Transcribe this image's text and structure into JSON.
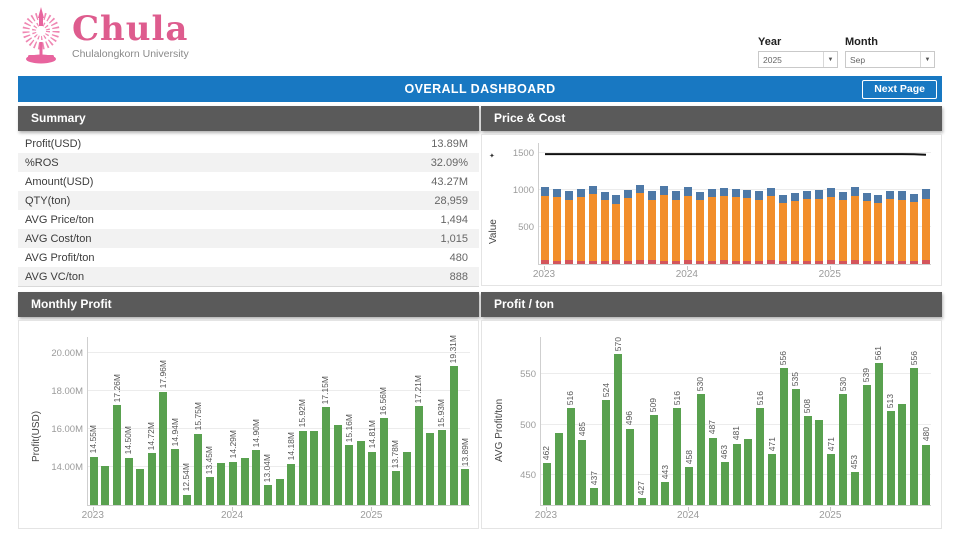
{
  "logo": {
    "brand": "Chula",
    "subtitle": "Chulalongkorn University"
  },
  "filters": {
    "year_label": "Year",
    "year_value": "2025",
    "month_label": "Month",
    "month_value": "Sep"
  },
  "title_bar": {
    "title": "OVERALL DASHBOARD",
    "next_button": "Next Page"
  },
  "panels": {
    "summary": "Summary",
    "price_cost": "Price & Cost",
    "monthly_profit": "Monthly Profit",
    "profit_ton": "Profit / ton"
  },
  "summary": {
    "rows": [
      {
        "label": "Profit(USD)",
        "value": "13.89M"
      },
      {
        "label": "%ROS",
        "value": "32.09%"
      },
      {
        "label": "Amount(USD)",
        "value": "43.27M"
      },
      {
        "label": "QTY(ton)",
        "value": "28,959"
      },
      {
        "label": "AVG Price/ton",
        "value": "1,494"
      },
      {
        "label": "AVG Cost/ton",
        "value": "1,015"
      },
      {
        "label": "AVG Profit/ton",
        "value": "480"
      },
      {
        "label": "AVG VC/ton",
        "value": "888"
      }
    ]
  },
  "colors": {
    "accent_blue": "#1878c2",
    "panel_gray": "#5a5a5a",
    "brand_pink": "#de5c8e",
    "bar_green": "#59a14f",
    "stack_orange": "#f28e2b",
    "stack_blue": "#4e79a7",
    "stack_red": "#d4555b",
    "price_line": "#111111"
  },
  "chart_data": [
    {
      "id": "price_cost",
      "type": "bar",
      "subtype": "stacked-bar-with-line",
      "title": "Price & Cost",
      "ylabel": "Value",
      "x_months": [
        "Jan 2023",
        "Feb 2023",
        "Mar 2023",
        "Apr 2023",
        "May 2023",
        "Jun 2023",
        "Jul 2023",
        "Aug 2023",
        "Sep 2023",
        "Oct 2023",
        "Nov 2023",
        "Dec 2023",
        "Jan 2024",
        "Feb 2024",
        "Mar 2024",
        "Apr 2024",
        "May 2024",
        "Jun 2024",
        "Jul 2024",
        "Aug 2024",
        "Sep 2024",
        "Oct 2024",
        "Nov 2024",
        "Dec 2024",
        "Jan 2025",
        "Feb 2025",
        "Mar 2025",
        "Apr 2025",
        "May 2025",
        "Jun 2025",
        "Jul 2025",
        "Aug 2025",
        "Sep 2025"
      ],
      "year_ticks": [
        {
          "index": 0,
          "label": "2023"
        },
        {
          "index": 12,
          "label": "2024"
        },
        {
          "index": 24,
          "label": "2025"
        }
      ],
      "yticks": [
        {
          "v": 500,
          "t": "500"
        },
        {
          "v": 1000,
          "t": "1000"
        },
        {
          "v": 1500,
          "t": "1500"
        }
      ],
      "ylim": [
        0,
        1650
      ],
      "grid": true,
      "legend": "none",
      "series": [
        {
          "name": "red",
          "color": "#d4555b",
          "values": [
            55,
            40,
            50,
            45,
            45,
            40,
            60,
            45,
            55,
            50,
            45,
            45,
            50,
            40,
            45,
            50,
            45,
            40,
            45,
            50,
            45,
            45,
            40,
            45,
            50,
            40,
            55,
            45,
            40,
            45,
            45,
            45,
            50
          ]
        },
        {
          "name": "orange",
          "color": "#f28e2b",
          "values": [
            865,
            860,
            815,
            860,
            905,
            830,
            750,
            845,
            900,
            810,
            885,
            825,
            875,
            825,
            865,
            875,
            860,
            855,
            815,
            865,
            785,
            805,
            835,
            840,
            860,
            825,
            860,
            810,
            790,
            830,
            825,
            790,
            830
          ]
        },
        {
          "name": "blue",
          "color": "#4e79a7",
          "values": [
            115,
            110,
            120,
            110,
            110,
            105,
            120,
            110,
            115,
            130,
            125,
            115,
            115,
            105,
            100,
            110,
            110,
            110,
            125,
            115,
            110,
            110,
            115,
            110,
            120,
            105,
            125,
            110,
            110,
            115,
            115,
            110,
            130
          ]
        }
      ],
      "line": {
        "name": "price",
        "color": "#111111",
        "values": [
          1500,
          1500,
          1500,
          1500,
          1500,
          1500,
          1500,
          1500,
          1500,
          1500,
          1500,
          1500,
          1500,
          1500,
          1500,
          1500,
          1500,
          1500,
          1500,
          1500,
          1500,
          1500,
          1500,
          1500,
          1500,
          1500,
          1500,
          1500,
          1500,
          1500,
          1500,
          1497,
          1490
        ]
      }
    },
    {
      "id": "monthly_profit",
      "type": "bar",
      "title": "Monthly Profit",
      "ylabel": "Profit(USD)",
      "x_months": [
        "Jan 2023",
        "Feb 2023",
        "Mar 2023",
        "Apr 2023",
        "May 2023",
        "Jun 2023",
        "Jul 2023",
        "Aug 2023",
        "Sep 2023",
        "Oct 2023",
        "Nov 2023",
        "Dec 2023",
        "Jan 2024",
        "Feb 2024",
        "Mar 2024",
        "Apr 2024",
        "May 2024",
        "Jun 2024",
        "Jul 2024",
        "Aug 2024",
        "Sep 2024",
        "Oct 2024",
        "Nov 2024",
        "Dec 2024",
        "Jan 2025",
        "Feb 2025",
        "Mar 2025",
        "Apr 2025",
        "May 2025",
        "Jun 2025",
        "Jul 2025",
        "Aug 2025",
        "Sep 2025"
      ],
      "year_ticks": [
        {
          "index": 0,
          "label": "2023"
        },
        {
          "index": 12,
          "label": "2024"
        },
        {
          "index": 24,
          "label": "2025"
        }
      ],
      "values": [
        14.55,
        14.05,
        17.26,
        14.5,
        13.9,
        14.72,
        17.96,
        14.94,
        12.54,
        15.75,
        13.45,
        14.2,
        14.29,
        14.5,
        14.9,
        13.04,
        13.35,
        14.18,
        15.92,
        15.88,
        17.15,
        16.2,
        15.16,
        15.35,
        14.81,
        16.56,
        13.78,
        14.78,
        17.21,
        15.8,
        15.93,
        19.31,
        13.89
      ],
      "labels": [
        "14.55M",
        "",
        "17.26M",
        "14.50M",
        "",
        "14.72M",
        "17.96M",
        "14.94M",
        "12.54M",
        "15.75M",
        "13.45M",
        "",
        "14.29M",
        "",
        "14.90M",
        "13.04M",
        "",
        "14.18M",
        "15.92M",
        "",
        "17.15M",
        "",
        "15.16M",
        "",
        "14.81M",
        "16.56M",
        "13.78M",
        "",
        "17.21M",
        "",
        "15.93M",
        "19.31M",
        "13.89M"
      ],
      "yticks": [
        {
          "v": 14,
          "t": "14.00M"
        },
        {
          "v": 16,
          "t": "16.00M"
        },
        {
          "v": 18,
          "t": "18.00M"
        },
        {
          "v": 20,
          "t": "20.00M"
        }
      ],
      "ylim": [
        12.0,
        20.9
      ],
      "grid": true,
      "bar_color": "#59a14f"
    },
    {
      "id": "profit_ton",
      "type": "bar",
      "title": "Profit / ton",
      "ylabel": "AVG Profit/ton",
      "x_months": [
        "Jan 2023",
        "Feb 2023",
        "Mar 2023",
        "Apr 2023",
        "May 2023",
        "Jun 2023",
        "Jul 2023",
        "Aug 2023",
        "Sep 2023",
        "Oct 2023",
        "Nov 2023",
        "Dec 2023",
        "Jan 2024",
        "Feb 2024",
        "Mar 2024",
        "Apr 2024",
        "May 2024",
        "Jun 2024",
        "Jul 2024",
        "Aug 2024",
        "Sep 2024",
        "Oct 2024",
        "Nov 2024",
        "Dec 2024",
        "Jan 2025",
        "Feb 2025",
        "Mar 2025",
        "Apr 2025",
        "May 2025",
        "Jun 2025",
        "Jul 2025",
        "Aug 2025",
        "Sep 2025"
      ],
      "year_ticks": [
        {
          "index": 0,
          "label": "2023"
        },
        {
          "index": 12,
          "label": "2024"
        },
        {
          "index": 24,
          "label": "2025"
        }
      ],
      "values": [
        462,
        492,
        516,
        485,
        437,
        524,
        570,
        496,
        427,
        509,
        443,
        516,
        458,
        530,
        487,
        463,
        481,
        486,
        516,
        471,
        556,
        535,
        508,
        505,
        471,
        530,
        453,
        539,
        561,
        513,
        520,
        556,
        480
      ],
      "labels": [
        "462",
        "",
        "516",
        "485",
        "437",
        "524",
        "570",
        "496",
        "427",
        "509",
        "443",
        "516",
        "458",
        "530",
        "487",
        "463",
        "481",
        "",
        "516",
        "471",
        "556",
        "535",
        "508",
        "",
        "471",
        "530",
        "453",
        "539",
        "561",
        "513",
        "",
        "556",
        "480"
      ],
      "yticks": [
        {
          "v": 450,
          "t": "450"
        },
        {
          "v": 500,
          "t": "500"
        },
        {
          "v": 550,
          "t": "550"
        }
      ],
      "ylim": [
        420,
        588
      ],
      "grid": true,
      "bar_color": "#59a14f"
    }
  ]
}
